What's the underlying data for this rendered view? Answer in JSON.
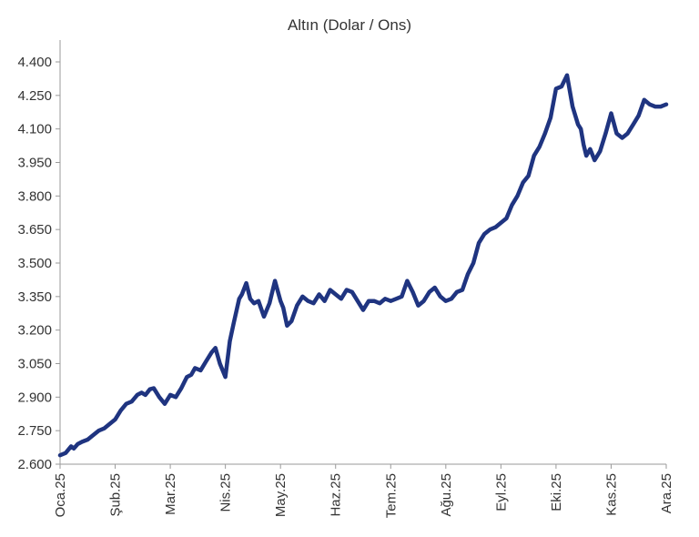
{
  "chart_data": {
    "type": "line",
    "title": "Altın (Dolar / Ons)",
    "xlabel": "",
    "ylabel": "",
    "grid": false,
    "legend": "none",
    "ylim": [
      2600,
      4400
    ],
    "y_ticks": [
      2600,
      2750,
      2900,
      3050,
      3200,
      3350,
      3500,
      3650,
      3800,
      3950,
      4100,
      4250,
      4400
    ],
    "y_tick_labels": [
      "2.600",
      "2.750",
      "2.900",
      "3.050",
      "3.200",
      "3.350",
      "3.500",
      "3.650",
      "3.800",
      "3.950",
      "4.100",
      "4.250",
      "4.400"
    ],
    "x_tick_labels": [
      "Oca.25",
      "Şub.25",
      "Mar.25",
      "Nis.25",
      "May.25",
      "Haz.25",
      "Tem.25",
      "Ağu.25",
      "Eyl.25",
      "Eki.25",
      "Kas.25",
      "Ara.25"
    ],
    "x_range_months": [
      0,
      11
    ],
    "series": [
      {
        "color": "#1f3480",
        "x_month": [
          0.0,
          0.1,
          0.2,
          0.25,
          0.32,
          0.4,
          0.5,
          0.6,
          0.7,
          0.8,
          0.9,
          1.0,
          1.1,
          1.2,
          1.3,
          1.4,
          1.48,
          1.55,
          1.63,
          1.7,
          1.8,
          1.9,
          2.0,
          2.1,
          2.2,
          2.3,
          2.38,
          2.45,
          2.55,
          2.65,
          2.75,
          2.82,
          2.9,
          3.0,
          3.08,
          3.15,
          3.25,
          3.3,
          3.38,
          3.45,
          3.52,
          3.6,
          3.7,
          3.8,
          3.9,
          4.0,
          4.05,
          4.12,
          4.2,
          4.3,
          4.4,
          4.5,
          4.6,
          4.7,
          4.8,
          4.9,
          5.0,
          5.1,
          5.2,
          5.3,
          5.4,
          5.5,
          5.6,
          5.7,
          5.8,
          5.9,
          6.0,
          6.1,
          6.2,
          6.3,
          6.4,
          6.5,
          6.6,
          6.7,
          6.8,
          6.9,
          7.0,
          7.1,
          7.2,
          7.3,
          7.4,
          7.5,
          7.6,
          7.7,
          7.8,
          7.9,
          8.0,
          8.1,
          8.2,
          8.3,
          8.4,
          8.5,
          8.6,
          8.7,
          8.8,
          8.9,
          9.0,
          9.1,
          9.2,
          9.3,
          9.4,
          9.45,
          9.5,
          9.55,
          9.62,
          9.7,
          9.8,
          9.9,
          10.0,
          10.1,
          10.2,
          10.3,
          10.4,
          10.5,
          10.6,
          10.7,
          10.8,
          10.9,
          11.0
        ],
        "y": [
          2640,
          2650,
          2680,
          2670,
          2690,
          2700,
          2710,
          2730,
          2750,
          2760,
          2780,
          2800,
          2840,
          2870,
          2880,
          2910,
          2920,
          2910,
          2935,
          2940,
          2900,
          2870,
          2910,
          2900,
          2940,
          2990,
          3000,
          3030,
          3020,
          3060,
          3100,
          3120,
          3050,
          2990,
          3150,
          3230,
          3340,
          3360,
          3410,
          3340,
          3320,
          3330,
          3260,
          3320,
          3420,
          3330,
          3300,
          3220,
          3240,
          3310,
          3350,
          3330,
          3320,
          3360,
          3330,
          3380,
          3360,
          3340,
          3380,
          3370,
          3330,
          3290,
          3330,
          3330,
          3320,
          3340,
          3330,
          3340,
          3350,
          3420,
          3370,
          3310,
          3330,
          3370,
          3390,
          3350,
          3330,
          3340,
          3370,
          3380,
          3450,
          3500,
          3590,
          3630,
          3650,
          3660,
          3680,
          3700,
          3760,
          3800,
          3860,
          3890,
          3980,
          4020,
          4080,
          4150,
          4280,
          4290,
          4340,
          4200,
          4120,
          4100,
          4030,
          3980,
          4010,
          3960,
          4000,
          4080,
          4170,
          4080,
          4060,
          4080,
          4120,
          4160,
          4230,
          4210,
          4200,
          4200,
          4210
        ]
      }
    ]
  }
}
